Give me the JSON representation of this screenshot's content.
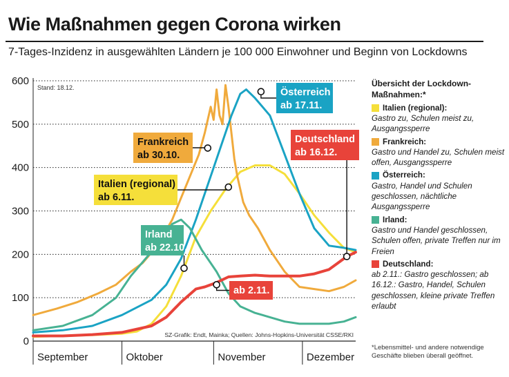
{
  "title": "Wie Maßnahmen gegen Corona wirken",
  "subtitle": "7-Tages-Inzidenz in ausgewählten Ländern je 100 000 Einwohner und Beginn von Lockdowns",
  "stand": "Stand: 18.12.",
  "source": "SZ-Grafik: Endt, Mainka; Quellen: Johns-Hopkins-Universität CSSE/RKI",
  "legend": {
    "title": "Übersicht der Lockdown-Maßnahmen:*",
    "items": [
      {
        "name": "Italien (regional):",
        "color": "#f5df3a",
        "desc": "Gastro zu, Schulen meist zu, Ausgangssperre"
      },
      {
        "name": "Frankreich:",
        "color": "#f0aa3c",
        "desc": "Gastro und Handel zu, Schulen meist offen, Ausgangssperre"
      },
      {
        "name": "Österreich:",
        "color": "#1aa3c4",
        "desc": "Gastro, Handel und Schulen geschlossen, nächtliche Ausgangssperre"
      },
      {
        "name": "Irland:",
        "color": "#47b293",
        "desc": "Gastro und Handel geschlossen, Schulen offen, private Treffen nur im Freien"
      },
      {
        "name": "Deutschland:",
        "color": "#e8433a",
        "desc": "ab 2.11.: Gastro geschlossen; ab 16.12.: Gastro, Handel, Schulen geschlossen, kleine private Treffen erlaubt"
      }
    ]
  },
  "footnote": "*Lebensmittel- und andere notwendige Geschäfte blieben überall geöffnet.",
  "chart_data": {
    "type": "line",
    "x_unit": "Tage seit 1. September",
    "ylim": [
      0,
      600
    ],
    "yticks": [
      0,
      100,
      200,
      300,
      400,
      500,
      600
    ],
    "months": [
      {
        "label": "September",
        "start": 0
      },
      {
        "label": "Oktober",
        "start": 30
      },
      {
        "label": "November",
        "start": 61
      },
      {
        "label": "Dezember",
        "start": 91
      }
    ],
    "xlim": [
      0,
      109
    ],
    "series": [
      {
        "name": "Italien",
        "color": "#f5df3a",
        "points": [
          [
            0,
            10
          ],
          [
            20,
            14
          ],
          [
            30,
            17
          ],
          [
            35,
            22
          ],
          [
            40,
            40
          ],
          [
            45,
            80
          ],
          [
            50,
            150
          ],
          [
            55,
            240
          ],
          [
            60,
            300
          ],
          [
            65,
            350
          ],
          [
            70,
            390
          ],
          [
            75,
            405
          ],
          [
            80,
            405
          ],
          [
            85,
            385
          ],
          [
            90,
            340
          ],
          [
            95,
            290
          ],
          [
            100,
            250
          ],
          [
            105,
            215
          ],
          [
            109,
            205
          ]
        ]
      },
      {
        "name": "Frankreich",
        "color": "#f0aa3c",
        "points": [
          [
            0,
            60
          ],
          [
            8,
            75
          ],
          [
            15,
            90
          ],
          [
            22,
            110
          ],
          [
            28,
            130
          ],
          [
            33,
            160
          ],
          [
            37,
            180
          ],
          [
            42,
            220
          ],
          [
            47,
            280
          ],
          [
            50,
            330
          ],
          [
            53,
            380
          ],
          [
            56,
            430
          ],
          [
            58,
            480
          ],
          [
            60,
            540
          ],
          [
            61,
            510
          ],
          [
            62,
            580
          ],
          [
            63,
            520
          ],
          [
            64,
            500
          ],
          [
            65,
            590
          ],
          [
            66,
            540
          ],
          [
            68,
            420
          ],
          [
            69,
            380
          ],
          [
            71,
            320
          ],
          [
            73,
            290
          ],
          [
            76,
            260
          ],
          [
            80,
            210
          ],
          [
            85,
            160
          ],
          [
            90,
            125
          ],
          [
            95,
            120
          ],
          [
            100,
            115
          ],
          [
            105,
            125
          ],
          [
            109,
            140
          ]
        ]
      },
      {
        "name": "Österreich",
        "color": "#1aa3c4",
        "points": [
          [
            0,
            20
          ],
          [
            10,
            25
          ],
          [
            20,
            35
          ],
          [
            30,
            60
          ],
          [
            40,
            95
          ],
          [
            45,
            130
          ],
          [
            50,
            190
          ],
          [
            55,
            280
          ],
          [
            60,
            380
          ],
          [
            64,
            460
          ],
          [
            67,
            520
          ],
          [
            70,
            570
          ],
          [
            72,
            580
          ],
          [
            75,
            560
          ],
          [
            80,
            520
          ],
          [
            85,
            430
          ],
          [
            90,
            340
          ],
          [
            95,
            260
          ],
          [
            100,
            220
          ],
          [
            105,
            215
          ],
          [
            109,
            210
          ]
        ]
      },
      {
        "name": "Irland",
        "color": "#47b293",
        "points": [
          [
            0,
            25
          ],
          [
            10,
            35
          ],
          [
            20,
            60
          ],
          [
            28,
            100
          ],
          [
            33,
            150
          ],
          [
            38,
            190
          ],
          [
            43,
            230
          ],
          [
            47,
            270
          ],
          [
            50,
            280
          ],
          [
            53,
            260
          ],
          [
            57,
            210
          ],
          [
            62,
            160
          ],
          [
            66,
            110
          ],
          [
            70,
            80
          ],
          [
            75,
            65
          ],
          [
            80,
            55
          ],
          [
            85,
            45
          ],
          [
            90,
            40
          ],
          [
            95,
            40
          ],
          [
            100,
            40
          ],
          [
            105,
            45
          ],
          [
            109,
            55
          ]
        ]
      },
      {
        "name": "Deutschland",
        "color": "#e8433a",
        "points": [
          [
            0,
            12
          ],
          [
            10,
            12
          ],
          [
            20,
            15
          ],
          [
            30,
            20
          ],
          [
            40,
            35
          ],
          [
            45,
            55
          ],
          [
            50,
            90
          ],
          [
            55,
            120
          ],
          [
            58,
            125
          ],
          [
            62,
            135
          ],
          [
            66,
            148
          ],
          [
            70,
            150
          ],
          [
            75,
            152
          ],
          [
            80,
            150
          ],
          [
            85,
            150
          ],
          [
            90,
            150
          ],
          [
            95,
            155
          ],
          [
            100,
            165
          ],
          [
            103,
            180
          ],
          [
            106,
            195
          ],
          [
            109,
            205
          ]
        ]
      }
    ],
    "annotations": [
      {
        "text": "Frankreich ab 30.10.",
        "line1": "Frankreich",
        "line2": "ab 30.10.",
        "color": "#f0aa3c",
        "point": [
          59,
          445
        ]
      },
      {
        "text": "Italien (regional) ab 6.11.",
        "line1": "Italien (regional)",
        "line2": "ab 6.11.",
        "color": "#f5df3a",
        "point": [
          66,
          355
        ]
      },
      {
        "text": "Österreich ab 17.11.",
        "line1": "Österreich",
        "line2": "ab 17.11.",
        "color": "#1aa3c4",
        "point": [
          77,
          575
        ]
      },
      {
        "text": "Irland ab 22.10.",
        "line1": "Irland",
        "line2": "ab 22.10.",
        "color": "#47b293",
        "point": [
          51,
          168
        ]
      },
      {
        "text": "Deutschland ab 2.11.",
        "line1": "ab 2.11.",
        "line2": "",
        "color": "#e8433a",
        "point": [
          62,
          130
        ]
      },
      {
        "text": "Deutschland ab 16.12.",
        "line1": "Deutschland",
        "line2": "ab 16.12.",
        "color": "#e8433a",
        "point": [
          106,
          195
        ]
      }
    ]
  }
}
